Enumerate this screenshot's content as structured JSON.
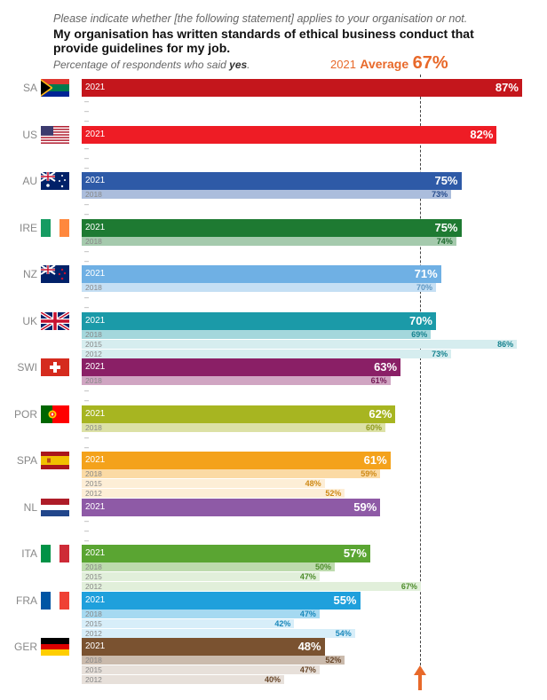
{
  "header": {
    "question": "Please indicate whether [the following statement] applies to your organisation or not.",
    "statement": "My organisation has written standards of ethical business conduct that provide guidelines for my job.",
    "subtitle_prefix": "Percentage of respondents who said ",
    "subtitle_emph": "yes",
    "subtitle_suffix": "."
  },
  "average": {
    "year_label": "2021",
    "label": "Average",
    "value_label": "67%"
  },
  "colors": {
    "average": "#e8692a"
  },
  "chart_data": {
    "type": "bar",
    "orientation": "horizontal",
    "title": "My organisation has written standards of ethical business conduct that provide guidelines for my job.",
    "unit": "%",
    "xlim": [
      0,
      100
    ],
    "average_2021": 67,
    "rows": [
      {
        "code": "SA",
        "color": "#c4161c",
        "bars": [
          {
            "year": "2021",
            "value": 87,
            "label": "87%"
          }
        ]
      },
      {
        "code": "US",
        "color": "#ee1c25",
        "bars": [
          {
            "year": "2021",
            "value": 82,
            "label": "82%"
          }
        ]
      },
      {
        "code": "AU",
        "color": "#2e5aa7",
        "bars": [
          {
            "year": "2021",
            "value": 75,
            "label": "75%"
          },
          {
            "year": "2018",
            "value": 73,
            "label": "73%"
          }
        ]
      },
      {
        "code": "IRE",
        "color": "#1e7a32",
        "bars": [
          {
            "year": "2021",
            "value": 75,
            "label": "75%"
          },
          {
            "year": "2018",
            "value": 74,
            "label": "74%"
          }
        ]
      },
      {
        "code": "NZ",
        "color": "#6fb0e4",
        "bars": [
          {
            "year": "2021",
            "value": 71,
            "label": "71%"
          },
          {
            "year": "2018",
            "value": 70,
            "label": "70%"
          }
        ]
      },
      {
        "code": "UK",
        "color": "#1b9aa8",
        "bars": [
          {
            "year": "2021",
            "value": 70,
            "label": "70%"
          },
          {
            "year": "2018",
            "value": 69,
            "label": "69%"
          },
          {
            "year": "2015",
            "value": 86,
            "label": "86%"
          },
          {
            "year": "2012",
            "value": 73,
            "label": "73%"
          }
        ]
      },
      {
        "code": "SWI",
        "color": "#8a1f66",
        "bars": [
          {
            "year": "2021",
            "value": 63,
            "label": "63%"
          },
          {
            "year": "2018",
            "value": 61,
            "label": "61%"
          }
        ]
      },
      {
        "code": "POR",
        "color": "#a7b521",
        "bars": [
          {
            "year": "2021",
            "value": 62,
            "label": "62%"
          },
          {
            "year": "2018",
            "value": 60,
            "label": "60%"
          }
        ]
      },
      {
        "code": "SPA",
        "color": "#f4a21b",
        "bars": [
          {
            "year": "2021",
            "value": 61,
            "label": "61%"
          },
          {
            "year": "2018",
            "value": 59,
            "label": "59%"
          },
          {
            "year": "2015",
            "value": 48,
            "label": "48%"
          },
          {
            "year": "2012",
            "value": 52,
            "label": "52%"
          }
        ]
      },
      {
        "code": "NL",
        "color": "#8e5aa6",
        "bars": [
          {
            "year": "2021",
            "value": 59,
            "label": "59%"
          }
        ]
      },
      {
        "code": "ITA",
        "color": "#5aa532",
        "bars": [
          {
            "year": "2021",
            "value": 57,
            "label": "57%"
          },
          {
            "year": "2018",
            "value": 50,
            "label": "50%"
          },
          {
            "year": "2015",
            "value": 47,
            "label": "47%"
          },
          {
            "year": "2012",
            "value": 67,
            "label": "67%"
          }
        ]
      },
      {
        "code": "FRA",
        "color": "#1fa0dc",
        "bars": [
          {
            "year": "2021",
            "value": 55,
            "label": "55%"
          },
          {
            "year": "2018",
            "value": 47,
            "label": "47%"
          },
          {
            "year": "2015",
            "value": 42,
            "label": "42%"
          },
          {
            "year": "2012",
            "value": 54,
            "label": "54%"
          }
        ]
      },
      {
        "code": "GER",
        "color": "#7a5230",
        "bars": [
          {
            "year": "2021",
            "value": 48,
            "label": "48%"
          },
          {
            "year": "2018",
            "value": 52,
            "label": "52%"
          },
          {
            "year": "2015",
            "value": 47,
            "label": "47%"
          },
          {
            "year": "2012",
            "value": 40,
            "label": "40%"
          }
        ]
      }
    ]
  }
}
